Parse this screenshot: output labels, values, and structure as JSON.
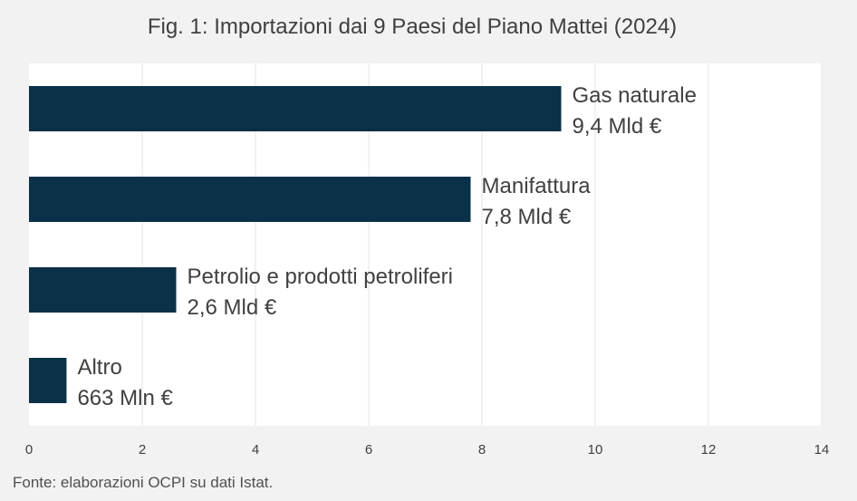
{
  "title": "Fig. 1: Importazioni dai 9 Paesi del Piano Mattei (2024)",
  "source": "Fonte: elaborazioni OCPI su dati Istat.",
  "colors": {
    "bar": "#0a3147",
    "plot_bg": "#ffffff",
    "page_bg": "#f2f2f2",
    "grid": "#e6e6e6",
    "text": "#404040"
  },
  "chart_data": {
    "type": "bar",
    "orientation": "horizontal",
    "categories": [
      "Gas naturale",
      "Manifattura",
      "Petrolio e prodotti petroliferi",
      "Altro"
    ],
    "values": [
      9.4,
      7.8,
      2.6,
      0.663
    ],
    "data_labels": [
      "9,4 Mld €",
      "7,8 Mld €",
      "2,6 Mld €",
      "663 Mln €"
    ],
    "xlim": [
      0,
      14
    ],
    "xticks": [
      0,
      2,
      4,
      6,
      8,
      10,
      12,
      14
    ],
    "grid": true
  }
}
